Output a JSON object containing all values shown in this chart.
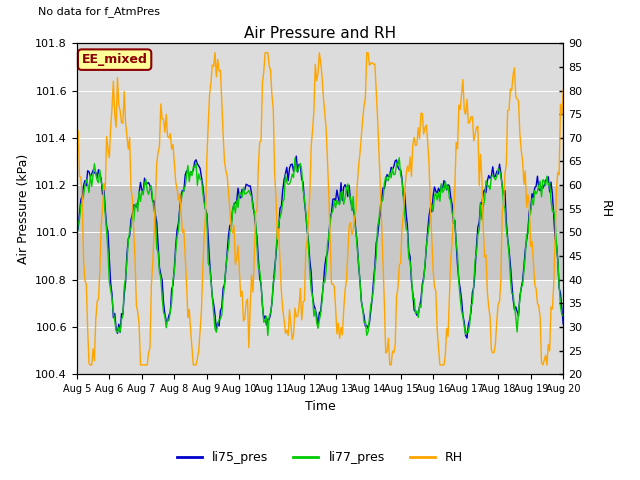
{
  "title": "Air Pressure and RH",
  "no_data_text": "No data for f_AtmPres",
  "box_label": "EE_mixed",
  "ylabel_left": "Air Pressure (kPa)",
  "ylabel_right": "RH",
  "xlabel": "Time",
  "ylim_left": [
    100.4,
    101.8
  ],
  "ylim_right": [
    20,
    90
  ],
  "yticks_left": [
    100.4,
    100.6,
    100.8,
    101.0,
    101.2,
    101.4,
    101.6,
    101.8
  ],
  "yticks_right": [
    20,
    25,
    30,
    35,
    40,
    45,
    50,
    55,
    60,
    65,
    70,
    75,
    80,
    85,
    90
  ],
  "xtick_labels": [
    "Aug 5",
    "Aug 6",
    "Aug 7",
    "Aug 8",
    "Aug 9",
    "Aug 10",
    "Aug 11",
    "Aug 12",
    "Aug 13",
    "Aug 14",
    "Aug 15",
    "Aug 16",
    "Aug 17",
    "Aug 18",
    "Aug 19",
    "Aug 20"
  ],
  "color_li75": "#0000CC",
  "color_li77": "#00CC00",
  "color_rh": "#FFA500",
  "legend_entries": [
    "li75_pres",
    "li77_pres",
    "RH"
  ],
  "band_ylim": [
    100.8,
    101.2
  ],
  "band_color": "#c8c8c8",
  "plot_bg_color": "#dcdcdc",
  "grid_color": "#ffffff",
  "box_bg_color": "#FFFF99",
  "box_edge_color": "#8B0000",
  "box_text_color": "#8B0000",
  "title_fontsize": 11,
  "label_fontsize": 9,
  "tick_fontsize": 8,
  "legend_fontsize": 9
}
